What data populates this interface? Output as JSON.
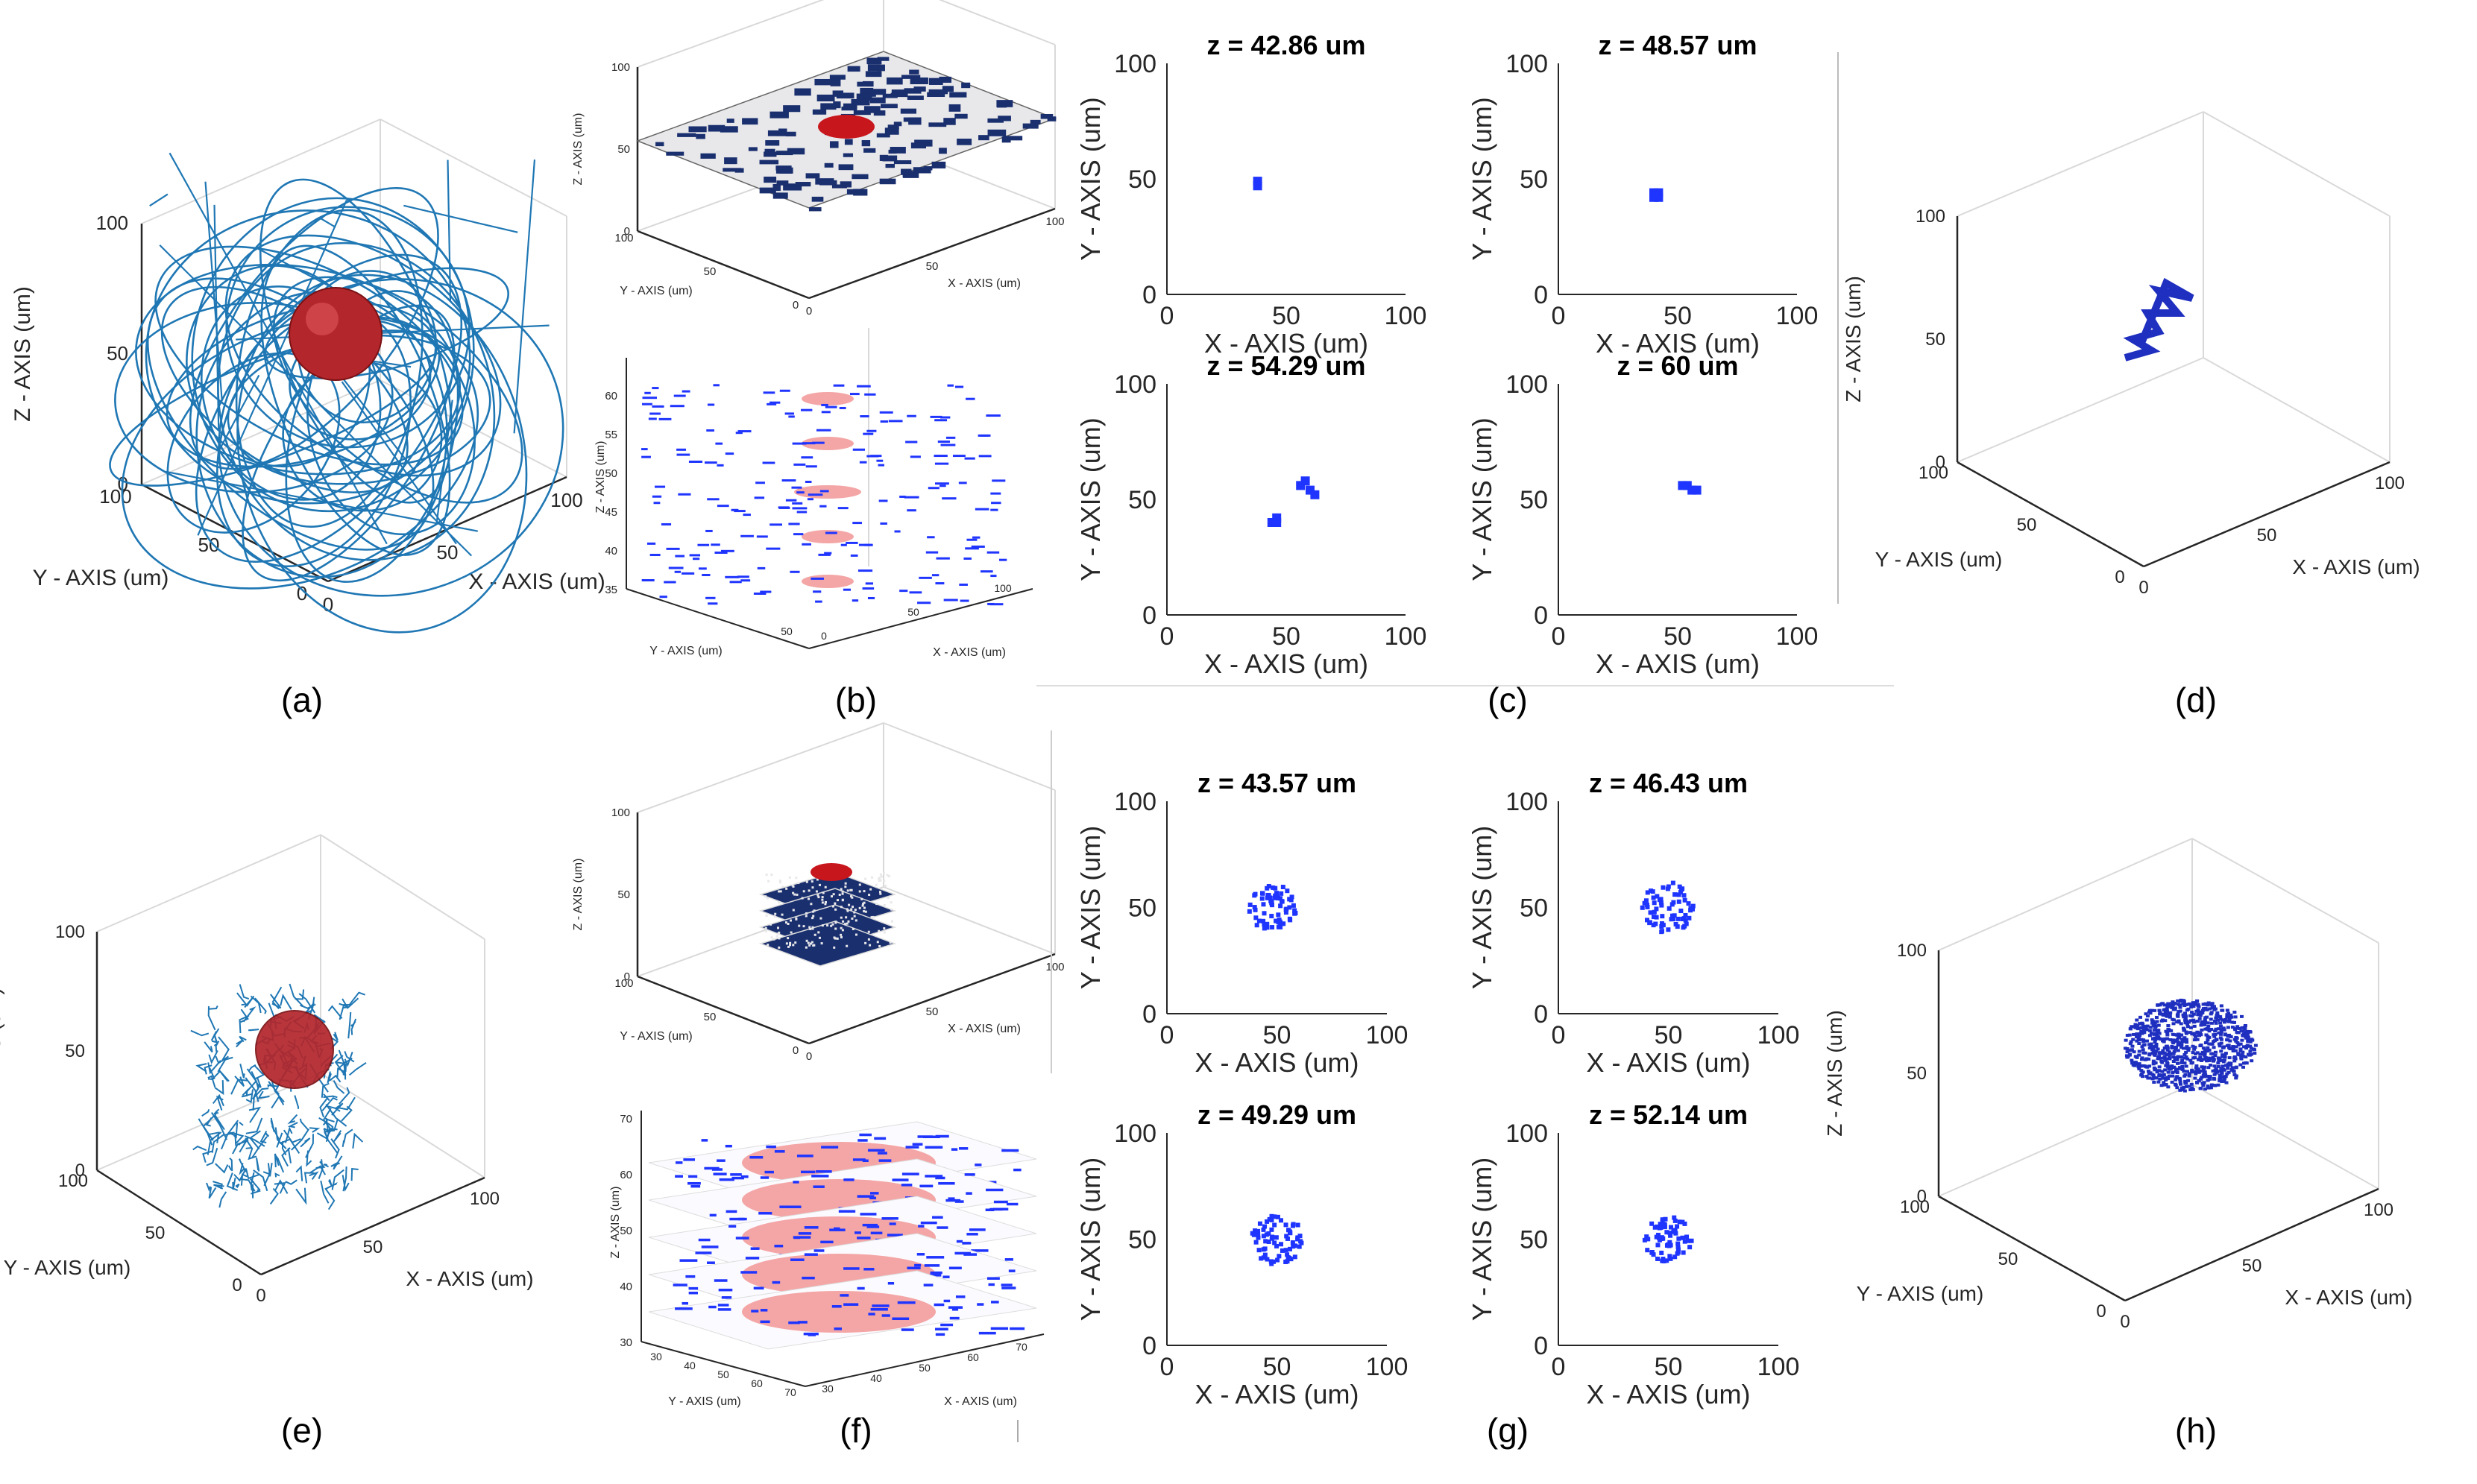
{
  "figure": {
    "captions": [
      "(a)",
      "(b)",
      "(c)",
      "(d)",
      "(e)",
      "(f)",
      "(g)",
      "(h)"
    ]
  },
  "colors": {
    "trajectory": "#1f77b4",
    "voxel_dark": "#1a2f6e",
    "voxel_blue": "#1f35ff",
    "tumor": "#b3262b",
    "tumor_slice": "#f4a6a6",
    "axis": "#262626",
    "grid": "#d9d9d9"
  },
  "chart_data": [
    {
      "id": "a",
      "type": "3d-line",
      "description_label": "3D scan trajectory with spherical target",
      "xlabel": "X - AXIS (um)",
      "ylabel": "Y - AXIS (um)",
      "zlabel": "Z - AXIS (um)",
      "xticks": [
        "0",
        "50",
        "100"
      ],
      "yticks": [
        "0",
        "50",
        "100"
      ],
      "zticks": [
        "0",
        "50",
        "100"
      ],
      "xlim": [
        0,
        100
      ],
      "ylim": [
        0,
        100
      ],
      "zlim": [
        0,
        100
      ],
      "sphere": {
        "center": [
          50,
          50,
          50
        ],
        "radius": 12
      }
    },
    {
      "id": "b_top",
      "type": "3d-voxel",
      "xlabel": "X - AXIS (um)",
      "ylabel": "Y - AXIS (um)",
      "zlabel": "Z - AXIS (um)",
      "xticks": [
        "0",
        "50",
        "100"
      ],
      "yticks": [
        "0",
        "50",
        "100"
      ],
      "zticks": [
        "0",
        "50",
        "100"
      ],
      "xlim": [
        0,
        100
      ],
      "ylim": [
        0,
        100
      ],
      "zlim": [
        0,
        100
      ]
    },
    {
      "id": "b_bottom",
      "type": "3d-slices",
      "xlabel": "X - AXIS (um)",
      "ylabel": "Y - AXIS (um)",
      "zlabel": "Z - AXIS (um)",
      "zticks": [
        "35",
        "40",
        "45",
        "50",
        "55",
        "60"
      ],
      "yticks": [
        "50"
      ],
      "xticks": [
        "0",
        "50",
        "100"
      ],
      "slices_z": [
        36,
        42,
        48,
        54,
        60
      ]
    },
    {
      "id": "c",
      "type": "scatter-grid",
      "xlabel": "X - AXIS (um)",
      "ylabel": "Y - AXIS (um)",
      "xticks": [
        "0",
        "50",
        "100"
      ],
      "yticks": [
        "0",
        "50",
        "100"
      ],
      "panels": [
        {
          "title": "z = 42.86 um",
          "points": [
            [
              38,
              47
            ],
            [
              38,
              49
            ]
          ]
        },
        {
          "title": "z = 48.57 um",
          "points": [
            [
              40,
              44
            ],
            [
              42,
              44
            ],
            [
              40,
              42
            ],
            [
              42,
              42
            ]
          ]
        },
        {
          "title": "z = 54.29 um",
          "points": [
            [
              44,
              40
            ],
            [
              46,
              40
            ],
            [
              46,
              42
            ],
            [
              56,
              56
            ],
            [
              58,
              58
            ],
            [
              60,
              54
            ],
            [
              62,
              52
            ]
          ]
        },
        {
          "title": "z = 60 um",
          "points": [
            [
              52,
              56
            ],
            [
              54,
              56
            ],
            [
              56,
              54
            ],
            [
              58,
              54
            ]
          ]
        }
      ]
    },
    {
      "id": "d",
      "type": "3d-line",
      "xlabel": "X - AXIS (um)",
      "ylabel": "Y - AXIS (um)",
      "zlabel": "Z - AXIS (um)",
      "xticks": [
        "0",
        "50",
        "100"
      ],
      "yticks": [
        "0",
        "50",
        "100"
      ],
      "zticks": [
        "0",
        "50",
        "100"
      ],
      "xlim": [
        0,
        100
      ],
      "ylim": [
        0,
        100
      ],
      "zlim": [
        0,
        100
      ]
    },
    {
      "id": "e",
      "type": "3d-line",
      "xlabel": "X - AXIS (um)",
      "ylabel": "Y - AXIS (um)",
      "zlabel": "Z - AXIS (um)",
      "xticks": [
        "0",
        "50",
        "100"
      ],
      "yticks": [
        "0",
        "50",
        "100"
      ],
      "zticks": [
        "0",
        "50",
        "100"
      ],
      "xlim": [
        0,
        100
      ],
      "ylim": [
        0,
        100
      ],
      "zlim": [
        0,
        100
      ],
      "sphere": {
        "center": [
          50,
          50,
          50
        ],
        "radius": 12
      }
    },
    {
      "id": "f_top",
      "type": "3d-voxel",
      "xlabel": "X - AXIS (um)",
      "ylabel": "Y - AXIS (um)",
      "zlabel": "Z - AXIS (um)",
      "xticks": [
        "0",
        "50",
        "100"
      ],
      "yticks": [
        "0",
        "50",
        "100"
      ],
      "zticks": [
        "0",
        "50",
        "100"
      ]
    },
    {
      "id": "f_bottom",
      "type": "3d-slices",
      "xlabel": "X - AXIS (um)",
      "ylabel": "Y - AXIS (um)",
      "zlabel": "Z - AXIS (um)",
      "zticks": [
        "30",
        "40",
        "50",
        "60",
        "70"
      ],
      "yticks": [
        "30",
        "40",
        "50",
        "60",
        "70"
      ],
      "xticks": [
        "30",
        "40",
        "50",
        "60",
        "70"
      ],
      "slices_z": [
        40,
        45,
        50,
        55,
        60,
        65
      ]
    },
    {
      "id": "g",
      "type": "scatter-grid",
      "xlabel": "X - AXIS (um)",
      "ylabel": "Y - AXIS (um)",
      "xticks": [
        "0",
        "50",
        "100"
      ],
      "yticks": [
        "0",
        "50",
        "100"
      ],
      "panels": [
        {
          "title": "z = 43.57 um",
          "center": [
            48,
            50
          ],
          "radius": 11
        },
        {
          "title": "z = 46.43 um",
          "center": [
            50,
            50
          ],
          "radius": 12
        },
        {
          "title": "z = 49.29 um",
          "center": [
            50,
            50
          ],
          "radius": 12
        },
        {
          "title": "z = 52.14 um",
          "center": [
            50,
            50
          ],
          "radius": 11
        }
      ]
    },
    {
      "id": "h",
      "type": "3d-scatter",
      "xlabel": "X - AXIS (um)",
      "ylabel": "Y - AXIS (um)",
      "zlabel": "Z - AXIS (um)",
      "xticks": [
        "0",
        "50",
        "100"
      ],
      "yticks": [
        "0",
        "50",
        "100"
      ],
      "zticks": [
        "0",
        "50",
        "100"
      ],
      "sphere": {
        "center": [
          50,
          50,
          50
        ],
        "radius": 12
      }
    }
  ]
}
